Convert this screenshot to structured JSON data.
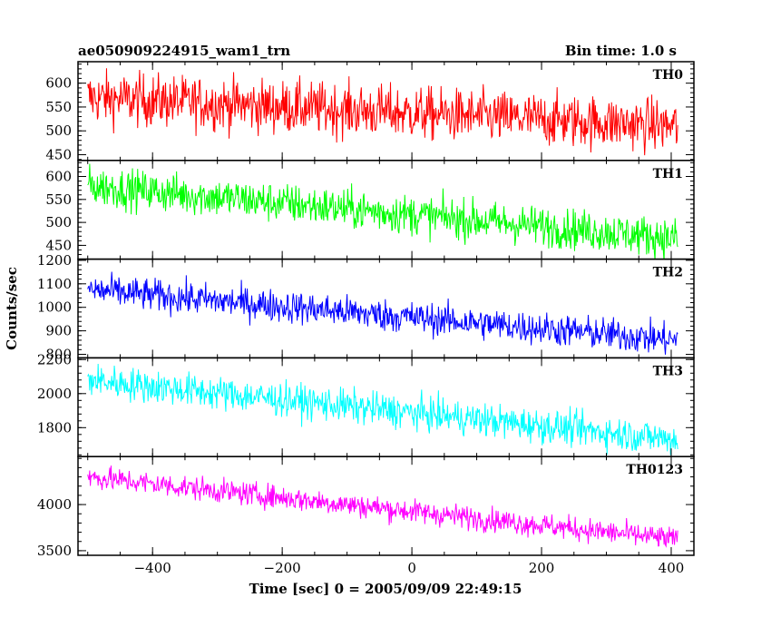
{
  "chart_data": {
    "type": "line",
    "title_left": "ae050909224915_wam1_trn",
    "title_right": "Bin time: 1.0 s",
    "xlabel": "Time [sec] 0 = 2005/09/09 22:49:15",
    "ylabel": "Counts/sec",
    "xlim": [
      -515,
      435
    ],
    "x_range": [
      -500,
      410
    ],
    "x_ticks": [
      -400,
      -200,
      0,
      200,
      400
    ],
    "x_tick_labels": [
      "−400",
      "−200",
      "0",
      "200",
      "400"
    ],
    "series": [
      {
        "name": "TH0",
        "color": "#ff0000",
        "ylim": [
          438,
          645
        ],
        "ticks": [
          450,
          500,
          550,
          600
        ],
        "start": 570,
        "end": 510,
        "noise": 28
      },
      {
        "name": "TH1",
        "color": "#00ff00",
        "ylim": [
          420,
          635
        ],
        "ticks": [
          450,
          500,
          550,
          600
        ],
        "start": 580,
        "end": 465,
        "noise": 22
      },
      {
        "name": "TH2",
        "color": "#0000ff",
        "ylim": [
          785,
          1205
        ],
        "ticks": [
          800,
          900,
          1000,
          1100,
          1200
        ],
        "start": 1075,
        "end": 860,
        "noise": 35
      },
      {
        "name": "TH3",
        "color": "#00ffff",
        "ylim": [
          1630,
          2210
        ],
        "ticks": [
          1800,
          2000,
          2200
        ],
        "start": 2080,
        "end": 1730,
        "noise": 50
      },
      {
        "name": "TH0123",
        "color": "#ff00ff",
        "ylim": [
          3450,
          4520
        ],
        "ticks": [
          3500,
          4000
        ],
        "start": 4300,
        "end": 3620,
        "noise": 65
      }
    ]
  }
}
